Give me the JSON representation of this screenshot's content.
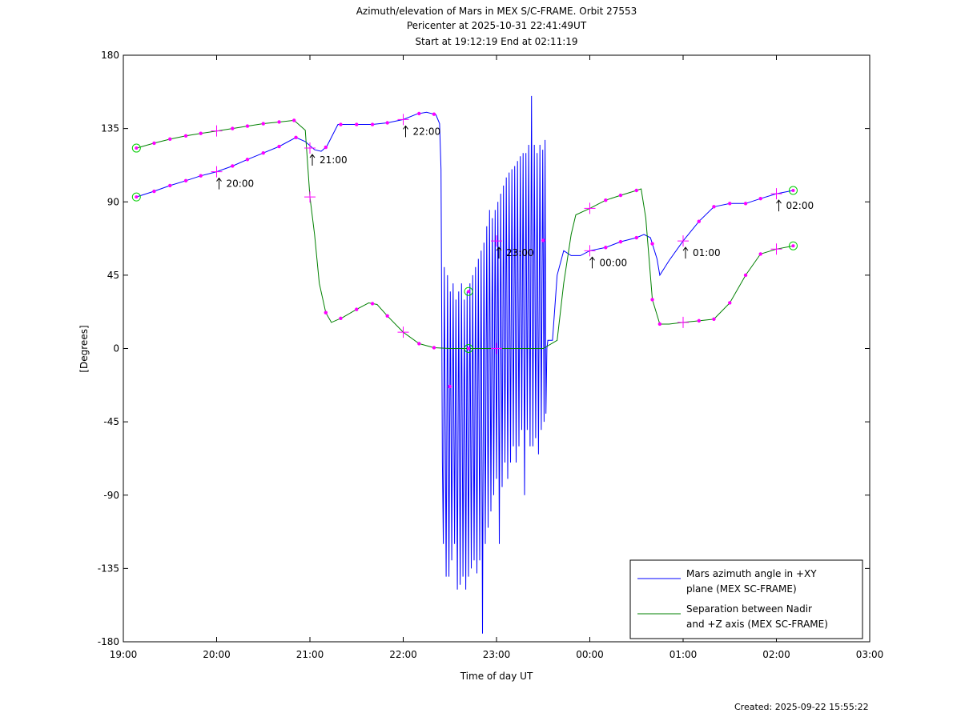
{
  "chart_data": {
    "type": "line",
    "title": [
      "Azimuth/elevation of Mars in MEX S/C-FRAME.  Orbit 27553",
      "Pericenter at 2025-10-31 22:41:49UT",
      "Start at 19:12:19 End at 02:11:19"
    ],
    "xlabel": "Time of day UT",
    "ylabel": "[Degrees]",
    "xlim": [
      19,
      27
    ],
    "ylim": [
      -180,
      180
    ],
    "xticks": [
      {
        "v": 19,
        "label": "19:00"
      },
      {
        "v": 20,
        "label": "20:00"
      },
      {
        "v": 21,
        "label": "21:00"
      },
      {
        "v": 22,
        "label": "22:00"
      },
      {
        "v": 23,
        "label": "23:00"
      },
      {
        "v": 24,
        "label": "00:00"
      },
      {
        "v": 25,
        "label": "01:00"
      },
      {
        "v": 26,
        "label": "02:00"
      },
      {
        "v": 27,
        "label": "03:00"
      }
    ],
    "yticks": [
      {
        "v": 180,
        "label": "180"
      },
      {
        "v": 135,
        "label": "135"
      },
      {
        "v": 90,
        "label": "90"
      },
      {
        "v": 45,
        "label": "45"
      },
      {
        "v": 0,
        "label": "0"
      },
      {
        "v": -45,
        "label": "-45"
      },
      {
        "v": -90,
        "label": "-90"
      },
      {
        "v": -135,
        "label": "-135"
      },
      {
        "v": -180,
        "label": "-180"
      }
    ],
    "series": [
      {
        "name": "Mars azimuth angle in +XY plane (MEX SC-FRAME)",
        "color": "#0000ff",
        "points": [
          [
            19.14,
            93
          ],
          [
            19.33,
            96.5
          ],
          [
            19.5,
            100
          ],
          [
            19.67,
            103
          ],
          [
            19.83,
            106
          ],
          [
            20.0,
            108.5
          ],
          [
            20.17,
            112
          ],
          [
            20.33,
            116
          ],
          [
            20.5,
            120
          ],
          [
            20.67,
            124
          ],
          [
            20.85,
            129.5
          ],
          [
            20.95,
            127
          ],
          [
            21.05,
            122
          ],
          [
            21.12,
            121
          ],
          [
            21.18,
            124
          ],
          [
            21.3,
            137.5
          ],
          [
            21.5,
            137.5
          ],
          [
            21.67,
            137.5
          ],
          [
            21.83,
            138.5
          ],
          [
            22.0,
            140.5
          ],
          [
            22.15,
            144
          ],
          [
            22.25,
            145
          ],
          [
            22.35,
            143.5
          ],
          [
            22.39,
            138
          ],
          [
            22.405,
            110
          ],
          [
            22.42,
            -70
          ],
          [
            22.43,
            -120
          ],
          [
            22.44,
            50
          ],
          [
            22.46,
            -140
          ],
          [
            22.475,
            45
          ],
          [
            22.49,
            -140
          ],
          [
            22.505,
            35
          ],
          [
            22.52,
            -130
          ],
          [
            22.535,
            40
          ],
          [
            22.55,
            -120
          ],
          [
            22.565,
            30
          ],
          [
            22.58,
            -148
          ],
          [
            22.595,
            35
          ],
          [
            22.61,
            -145
          ],
          [
            22.625,
            40
          ],
          [
            22.64,
            -140
          ],
          [
            22.655,
            30
          ],
          [
            22.67,
            -148
          ],
          [
            22.685,
            35
          ],
          [
            22.7,
            -140
          ],
          [
            22.715,
            40
          ],
          [
            22.73,
            -135
          ],
          [
            22.745,
            45
          ],
          [
            22.76,
            -130
          ],
          [
            22.775,
            50
          ],
          [
            22.79,
            -138
          ],
          [
            22.805,
            55
          ],
          [
            22.82,
            -130
          ],
          [
            22.835,
            60
          ],
          [
            22.85,
            -175
          ],
          [
            22.865,
            65
          ],
          [
            22.88,
            -120
          ],
          [
            22.895,
            75
          ],
          [
            22.91,
            -110
          ],
          [
            22.925,
            85
          ],
          [
            22.94,
            -100
          ],
          [
            22.955,
            80
          ],
          [
            22.97,
            -90
          ],
          [
            22.985,
            85
          ],
          [
            23.0,
            -80
          ],
          [
            23.015,
            90
          ],
          [
            23.03,
            -120
          ],
          [
            23.045,
            95
          ],
          [
            23.06,
            -85
          ],
          [
            23.075,
            100
          ],
          [
            23.09,
            -70
          ],
          [
            23.105,
            105
          ],
          [
            23.12,
            -80
          ],
          [
            23.135,
            108
          ],
          [
            23.15,
            -70
          ],
          [
            23.165,
            110
          ],
          [
            23.18,
            -60
          ],
          [
            23.195,
            112
          ],
          [
            23.21,
            -70
          ],
          [
            23.225,
            115
          ],
          [
            23.24,
            -60
          ],
          [
            23.255,
            118
          ],
          [
            23.27,
            -50
          ],
          [
            23.285,
            120
          ],
          [
            23.3,
            -90
          ],
          [
            23.315,
            120
          ],
          [
            23.33,
            -50
          ],
          [
            23.345,
            125
          ],
          [
            23.36,
            -60
          ],
          [
            23.375,
            155
          ],
          [
            23.39,
            -60
          ],
          [
            23.405,
            125
          ],
          [
            23.42,
            -55
          ],
          [
            23.435,
            120
          ],
          [
            23.45,
            -65
          ],
          [
            23.465,
            125
          ],
          [
            23.48,
            -50
          ],
          [
            23.495,
            122
          ],
          [
            23.51,
            -45
          ],
          [
            23.52,
            128
          ],
          [
            23.53,
            -40
          ],
          [
            23.54,
            0
          ],
          [
            23.55,
            5
          ],
          [
            23.6,
            5
          ],
          [
            23.65,
            45
          ],
          [
            23.72,
            60
          ],
          [
            23.8,
            57
          ],
          [
            23.9,
            57
          ],
          [
            24.0,
            60
          ],
          [
            24.17,
            62
          ],
          [
            24.33,
            65.5
          ],
          [
            24.5,
            68
          ],
          [
            24.58,
            70
          ],
          [
            24.65,
            68
          ],
          [
            24.72,
            55
          ],
          [
            24.75,
            45
          ],
          [
            24.85,
            54
          ],
          [
            25.0,
            66
          ],
          [
            25.17,
            78
          ],
          [
            25.33,
            87
          ],
          [
            25.5,
            89
          ],
          [
            25.67,
            89
          ],
          [
            25.83,
            92
          ],
          [
            26.0,
            95
          ],
          [
            26.18,
            97
          ]
        ]
      },
      {
        "name": "Separation between Nadir and +Z axis (MEX SC-FRAME)",
        "color": "#008000",
        "points": [
          [
            19.14,
            123
          ],
          [
            19.33,
            126
          ],
          [
            19.5,
            128.5
          ],
          [
            19.67,
            130.5
          ],
          [
            19.83,
            132
          ],
          [
            20.0,
            133.5
          ],
          [
            20.17,
            135
          ],
          [
            20.33,
            136.5
          ],
          [
            20.5,
            138
          ],
          [
            20.67,
            139
          ],
          [
            20.83,
            140
          ],
          [
            20.95,
            134
          ],
          [
            21.0,
            93
          ],
          [
            21.05,
            70
          ],
          [
            21.1,
            40
          ],
          [
            21.17,
            22
          ],
          [
            21.23,
            16
          ],
          [
            21.35,
            19
          ],
          [
            21.5,
            24
          ],
          [
            21.63,
            28
          ],
          [
            21.72,
            27
          ],
          [
            21.83,
            20
          ],
          [
            22.0,
            10
          ],
          [
            22.17,
            3
          ],
          [
            22.33,
            0.5
          ],
          [
            22.5,
            0
          ],
          [
            23.0,
            0
          ],
          [
            23.5,
            0
          ],
          [
            23.65,
            5
          ],
          [
            23.72,
            40
          ],
          [
            23.8,
            70
          ],
          [
            23.85,
            82
          ],
          [
            24.0,
            86
          ],
          [
            24.17,
            91
          ],
          [
            24.33,
            94
          ],
          [
            24.5,
            97
          ],
          [
            24.55,
            98
          ],
          [
            24.6,
            80
          ],
          [
            24.67,
            30
          ],
          [
            24.75,
            15
          ],
          [
            24.85,
            15
          ],
          [
            25.0,
            16
          ],
          [
            25.17,
            17
          ],
          [
            25.33,
            18
          ],
          [
            25.5,
            28
          ],
          [
            25.67,
            45
          ],
          [
            25.83,
            58
          ],
          [
            26.0,
            61
          ],
          [
            26.18,
            63
          ]
        ]
      }
    ],
    "magenta_markers": {
      "azimuth_times": [
        19.33,
        19.5,
        19.67,
        19.83,
        20.17,
        20.33,
        20.5,
        20.67,
        20.85,
        21.17,
        21.33,
        21.5,
        21.67,
        21.83,
        22.17,
        22.33,
        22.5,
        23.5,
        24.17,
        24.33,
        24.5,
        24.67,
        25.17,
        25.33,
        25.5,
        25.67,
        25.83
      ],
      "separation_times": [
        19.33,
        19.5,
        19.67,
        19.83,
        20.17,
        20.33,
        20.5,
        20.67,
        20.83,
        21.17,
        21.33,
        21.5,
        21.67,
        21.83,
        22.17,
        22.33,
        24.17,
        24.33,
        24.5,
        24.67,
        24.75,
        25.17,
        25.33,
        25.5,
        25.67,
        25.83
      ]
    },
    "hour_marks_azimuth": [
      {
        "t": 20.0,
        "y": 108.5,
        "label": "20:00"
      },
      {
        "t": 21.0,
        "y": 123,
        "label": "21:00"
      },
      {
        "t": 22.0,
        "y": 140.5,
        "label": "22:00"
      },
      {
        "t": 23.0,
        "y": 66,
        "label": "23:00"
      },
      {
        "t": 24.0,
        "y": 60,
        "label": "00:00"
      },
      {
        "t": 25.0,
        "y": 66,
        "label": "01:00"
      },
      {
        "t": 26.0,
        "y": 95,
        "label": "02:00"
      }
    ],
    "hour_marks_separation": [
      {
        "t": 20.0,
        "y": 133.5
      },
      {
        "t": 21.0,
        "y": 93
      },
      {
        "t": 22.0,
        "y": 10
      },
      {
        "t": 23.0,
        "y": 0
      },
      {
        "t": 24.0,
        "y": 86
      },
      {
        "t": 25.0,
        "y": 16
      },
      {
        "t": 26.0,
        "y": 61
      }
    ],
    "start_end_circles": [
      {
        "t": 19.14,
        "y": 93
      },
      {
        "t": 19.14,
        "y": 123
      },
      {
        "t": 26.18,
        "y": 97
      },
      {
        "t": 26.18,
        "y": 63
      },
      {
        "t": 22.7,
        "y": 0
      },
      {
        "t": 22.7,
        "y": 35
      }
    ],
    "legend": {
      "position": "bottom-right",
      "entries": [
        {
          "lines": [
            "Mars azimuth angle in +XY",
            "plane (MEX SC-FRAME)"
          ],
          "color": "#0000ff"
        },
        {
          "lines": [
            "Separation between Nadir",
            "and +Z axis (MEX SC-FRAME)"
          ],
          "color": "#008000"
        }
      ]
    }
  },
  "footer": {
    "created": "Created: 2025-09-22 15:55:22"
  }
}
